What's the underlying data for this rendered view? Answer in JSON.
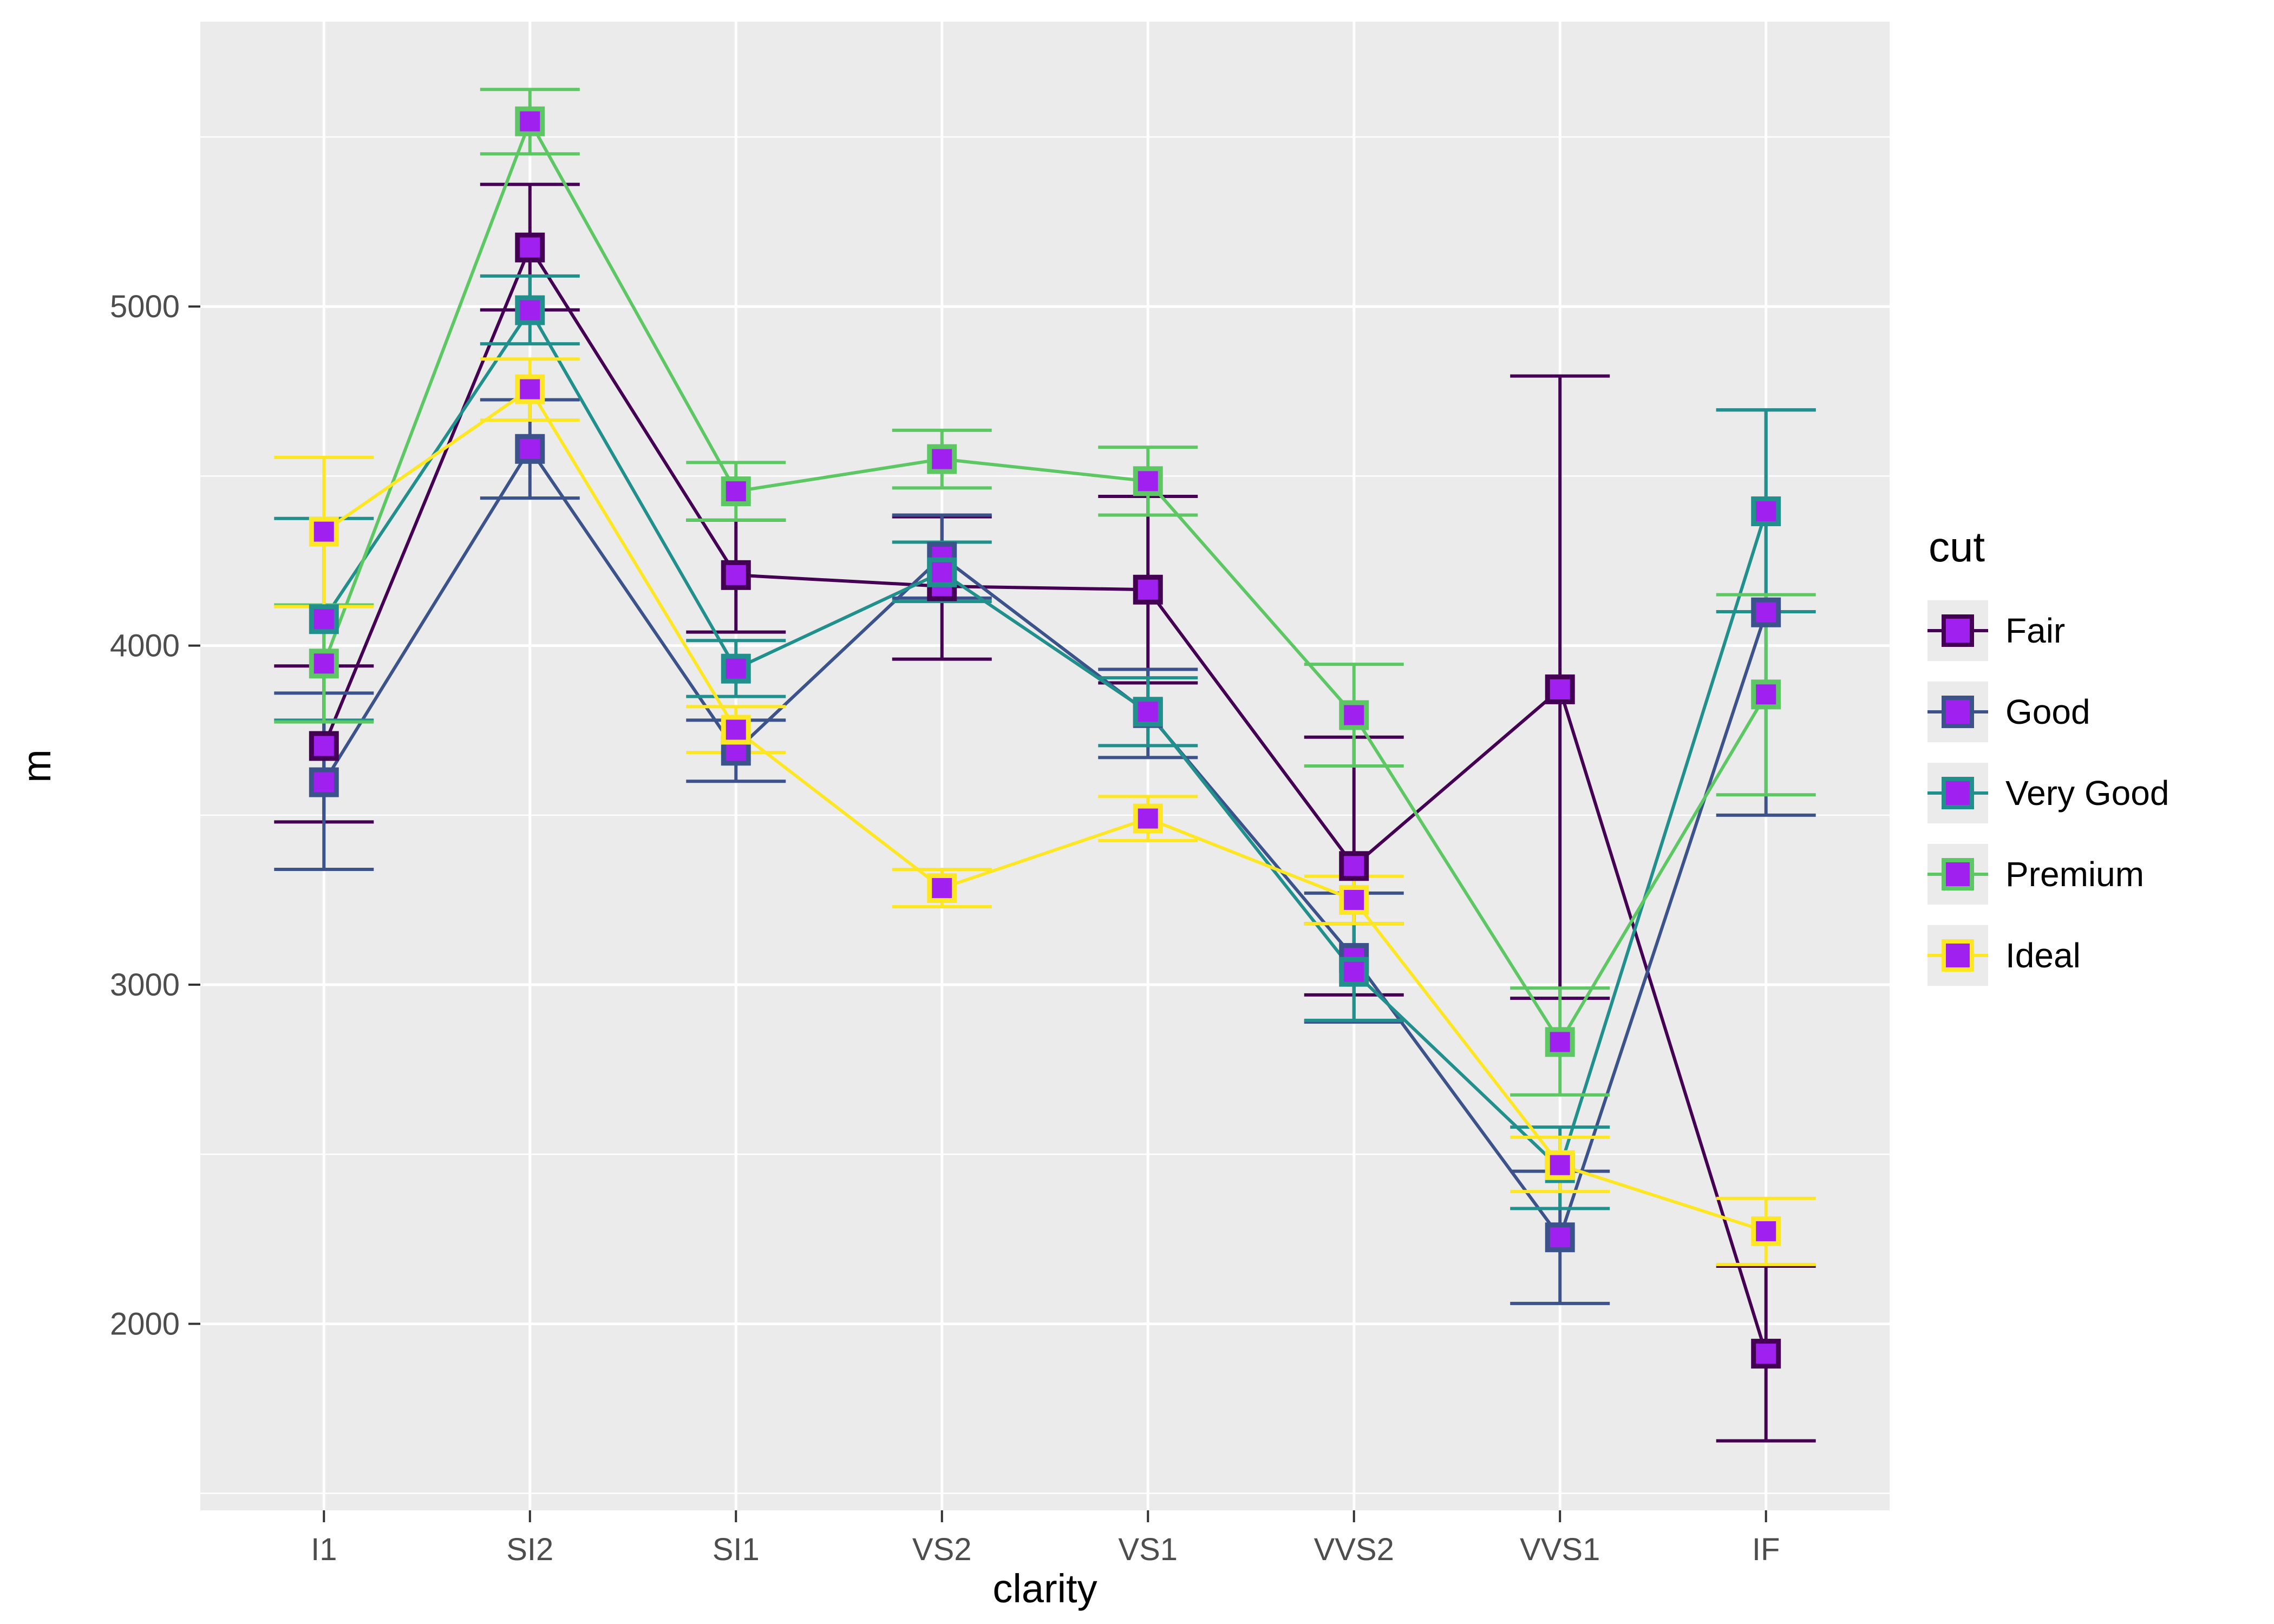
{
  "legend": {
    "title": "cut",
    "items": [
      {
        "label": "Fair",
        "color": "#440154"
      },
      {
        "label": "Good",
        "color": "#3B528B"
      },
      {
        "label": "Very Good",
        "color": "#21908C"
      },
      {
        "label": "Premium",
        "color": "#5DC863"
      },
      {
        "label": "Ideal",
        "color": "#FDE725"
      }
    ]
  },
  "chart_data": {
    "type": "line",
    "title": "",
    "xlabel": "clarity",
    "ylabel": "m",
    "categories": [
      "I1",
      "SI2",
      "SI1",
      "VS2",
      "VS1",
      "VVS2",
      "VVS1",
      "IF"
    ],
    "ylim": [
      1450,
      5840
    ],
    "y_major_ticks": [
      2000,
      3000,
      4000,
      5000
    ],
    "y_minor_ticks": [
      1500,
      2500,
      3500,
      4500,
      5500
    ],
    "grid": "on",
    "legend_position": "right",
    "panel_bg": "#EBEBEB",
    "grid_color": "#FFFFFF",
    "tick_label_color": "#4D4D4D",
    "point_fill": "#A020F0",
    "series": [
      {
        "name": "Fair",
        "color": "#440154",
        "means": [
          3704,
          5174,
          4208,
          4175,
          4165,
          3350,
          3871,
          1912
        ],
        "lower": [
          3480,
          4990,
          4040,
          3960,
          3890,
          2970,
          2960,
          1655
        ],
        "upper": [
          3940,
          5360,
          4370,
          4380,
          4440,
          3730,
          4795,
          2170
        ]
      },
      {
        "name": "Good",
        "color": "#3B528B",
        "means": [
          3597,
          4580,
          3690,
          4262,
          3801,
          3079,
          2255,
          4098
        ],
        "lower": [
          3340,
          4435,
          3600,
          4140,
          3670,
          2890,
          2060,
          3500
        ],
        "upper": [
          3860,
          4725,
          3780,
          4385,
          3930,
          3270,
          2450,
          4695
        ]
      },
      {
        "name": "Very Good",
        "color": "#21908C",
        "means": [
          4078,
          4989,
          3932,
          4216,
          3805,
          3038,
          2459,
          4396
        ],
        "lower": [
          3780,
          4890,
          3850,
          4130,
          3705,
          2895,
          2340,
          4100
        ],
        "upper": [
          4375,
          5090,
          4015,
          4305,
          3905,
          3180,
          2580,
          4695
        ]
      },
      {
        "name": "Premium",
        "color": "#5DC863",
        "means": [
          3947,
          5546,
          4455,
          4550,
          4485,
          3795,
          2831,
          3856
        ],
        "lower": [
          3775,
          5450,
          4370,
          4465,
          4385,
          3645,
          2675,
          3560
        ],
        "upper": [
          4120,
          5640,
          4540,
          4635,
          4585,
          3945,
          2990,
          4150
        ]
      },
      {
        "name": "Ideal",
        "color": "#FDE725",
        "means": [
          4336,
          4756,
          3752,
          3285,
          3490,
          3250,
          2468,
          2273
        ],
        "lower": [
          4115,
          4665,
          3685,
          3230,
          3425,
          3180,
          2390,
          2175
        ],
        "upper": [
          4555,
          4845,
          3820,
          3340,
          3555,
          3320,
          2550,
          2370
        ]
      }
    ]
  }
}
